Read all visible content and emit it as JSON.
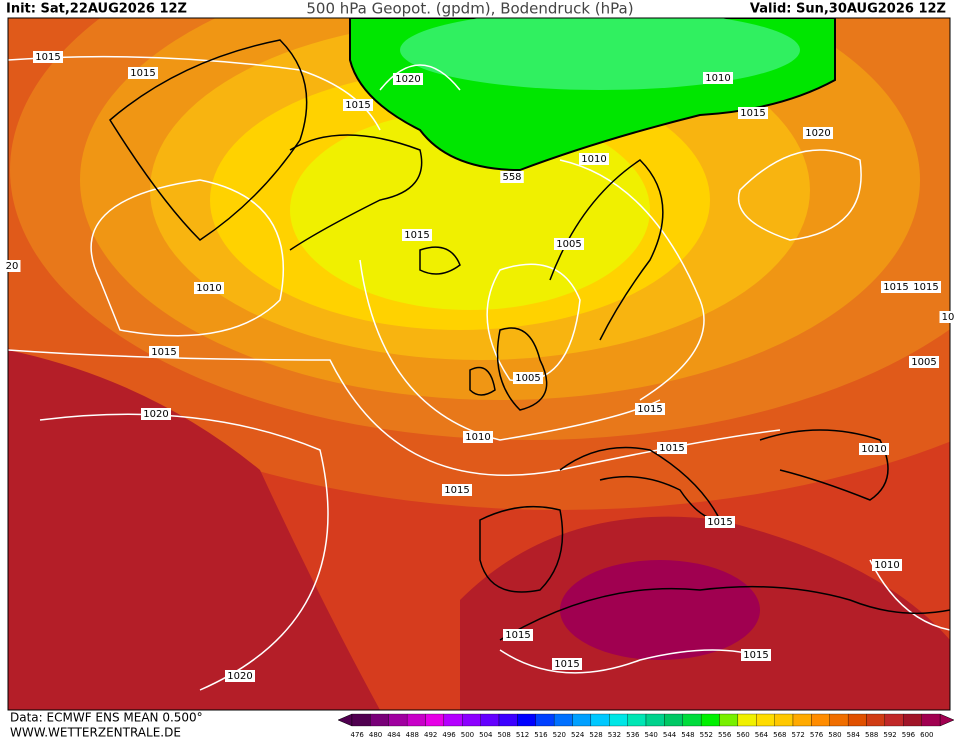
{
  "header": {
    "init": "Init: Sat,22AUG2026 12Z",
    "title": "500 hPa Geopot. (gpdm), Bodendruck (hPa)",
    "valid": "Valid: Sun,30AUG2026 12Z"
  },
  "isobar_labels": [
    "1015",
    "1015",
    "1020",
    "1015",
    "1010",
    "1015",
    "1020",
    "1010",
    "558",
    "1015",
    "1005",
    "20",
    "1010",
    "1015",
    "1015",
    "10",
    "1015",
    "1005",
    "1005",
    "1015",
    "1020",
    "1010",
    "1015",
    "1010",
    "1015",
    "1015",
    "1010",
    "1015",
    "1015",
    "1015",
    "1020"
  ],
  "colorbar": {
    "levels": [
      476,
      480,
      484,
      488,
      492,
      496,
      500,
      504,
      508,
      512,
      516,
      520,
      524,
      528,
      532,
      536,
      540,
      544,
      548,
      552,
      556,
      560,
      564,
      568,
      572,
      576,
      580,
      584,
      588,
      592,
      596,
      600
    ],
    "colors": [
      "#500050",
      "#780078",
      "#a000a0",
      "#c800c8",
      "#e600e6",
      "#b400ff",
      "#8c00ff",
      "#6400ff",
      "#3c00ff",
      "#0000ff",
      "#0040ff",
      "#0070ff",
      "#00a0ff",
      "#00c8ff",
      "#00e6e6",
      "#00e6b4",
      "#00d28c",
      "#00c864",
      "#00dc3c",
      "#00f000",
      "#78f000",
      "#f0f000",
      "#ffdc00",
      "#ffc800",
      "#ffaa00",
      "#ff8c00",
      "#f06e00",
      "#e05000",
      "#d03c14",
      "#c02828",
      "#a01428",
      "#a00050"
    ]
  },
  "footer": {
    "source": "Data: ECMWF ENS MEAN 0.500°",
    "website": "WWW.WETTERZENTRALE.DE"
  }
}
